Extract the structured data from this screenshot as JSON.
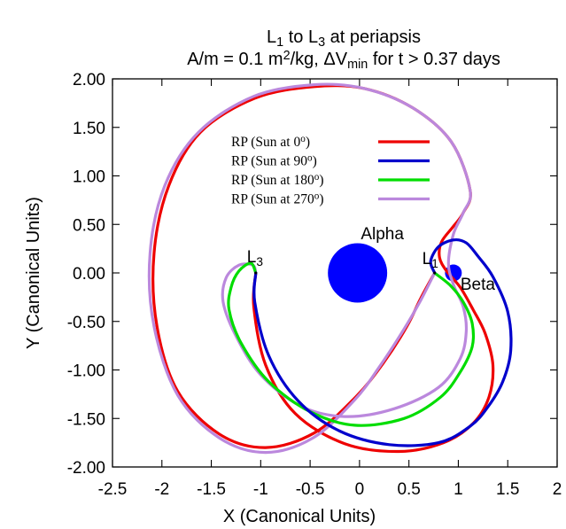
{
  "chart_data": {
    "type": "line",
    "title": {
      "line1": [
        "L",
        "1",
        " to L",
        "3",
        " at periapsis"
      ],
      "line2": [
        "A/m = 0.1 m",
        "2",
        "/kg, ΔV",
        "min",
        " for t > 0.37 days"
      ]
    },
    "xlabel": "X (Canonical Units)",
    "ylabel": "Y (Canonical Units)",
    "xlim": [
      -2.5,
      2
    ],
    "ylim": [
      -2.0,
      2.0
    ],
    "xticks": [
      "-2.5",
      "-2",
      "-1.5",
      "-1",
      "-0.5",
      "0",
      "0.5",
      "1",
      "1.5",
      "2"
    ],
    "yticks": [
      "2.00",
      "1.50",
      "1.00",
      "0.50",
      "0.00",
      "-0.50",
      "-1.00",
      "-1.50",
      "-2.00"
    ],
    "grid": false,
    "legend_position": "upper-center",
    "bodies": [
      {
        "name": "Alpha",
        "x": -0.02,
        "y": 0.0,
        "r": 0.3,
        "color": "#0000ff"
      },
      {
        "name": "Beta",
        "x": 0.95,
        "y": 0.0,
        "r": 0.085,
        "color": "#0000ff"
      }
    ],
    "points": [
      {
        "label": [
          "L",
          "1"
        ],
        "x": 0.76,
        "y": 0.0
      },
      {
        "label": [
          "L",
          "3"
        ],
        "x": -1.05,
        "y": 0.0
      }
    ],
    "series": [
      {
        "name": [
          "RP (Sun at 0",
          "o",
          ")"
        ],
        "color": "#ee0000",
        "x": [
          0.76,
          0.62,
          0.48,
          0.24,
          -0.04,
          -0.46,
          -0.95,
          -1.42,
          -1.84,
          -2.05,
          -2.08,
          -1.93,
          -1.61,
          -1.06,
          -0.46,
          0.05,
          0.54,
          0.93,
          1.12,
          1.05,
          0.95,
          0.83,
          0.81,
          0.88,
          1.02,
          1.15,
          1.27,
          1.35,
          1.31,
          1.15,
          0.85,
          0.4,
          -0.15,
          -0.65,
          -0.95,
          -1.07,
          -1.05
        ],
        "y": [
          0.0,
          -0.26,
          -0.55,
          -0.93,
          -1.28,
          -1.65,
          -1.8,
          -1.66,
          -1.22,
          -0.55,
          0.2,
          0.9,
          1.45,
          1.8,
          1.92,
          1.9,
          1.7,
          1.35,
          0.85,
          0.62,
          0.48,
          0.32,
          0.16,
          0.02,
          -0.15,
          -0.38,
          -0.62,
          -0.95,
          -1.28,
          -1.55,
          -1.75,
          -1.84,
          -1.76,
          -1.45,
          -0.95,
          -0.35,
          0.0
        ]
      },
      {
        "name": [
          "RP (Sun at 90",
          "o",
          ")"
        ],
        "color": "#0000cc",
        "x": [
          0.76,
          0.72,
          0.8,
          0.95,
          1.08,
          1.2,
          1.35,
          1.5,
          1.53,
          1.45,
          1.3,
          1.12,
          0.8,
          0.3,
          -0.2,
          -0.62,
          -0.92,
          -1.06,
          -1.05
        ],
        "y": [
          0.0,
          0.12,
          0.27,
          0.34,
          0.31,
          0.17,
          -0.04,
          -0.4,
          -0.8,
          -1.12,
          -1.38,
          -1.58,
          -1.75,
          -1.77,
          -1.63,
          -1.32,
          -0.85,
          -0.3,
          0.0
        ]
      },
      {
        "name": [
          "RP (Sun at 180",
          "o",
          ")"
        ],
        "color": "#00dd00",
        "x": [
          0.76,
          0.92,
          1.05,
          1.14,
          1.14,
          1.02,
          0.82,
          0.45,
          -0.05,
          -0.5,
          -0.92,
          -1.2,
          -1.32,
          -1.3,
          -1.22,
          -1.1,
          -1.05
        ],
        "y": [
          0.0,
          -0.13,
          -0.3,
          -0.52,
          -0.76,
          -1.02,
          -1.28,
          -1.5,
          -1.57,
          -1.43,
          -1.12,
          -0.72,
          -0.38,
          -0.15,
          0.02,
          0.1,
          0.0
        ]
      },
      {
        "name": [
          "RP (Sun at 270",
          "o",
          ")"
        ],
        "color": "#bb88dd",
        "x": [
          0.76,
          0.62,
          0.45,
          0.2,
          -0.05,
          -0.47,
          -0.95,
          -1.42,
          -1.84,
          -2.08,
          -2.12,
          -1.97,
          -1.63,
          -1.07,
          -0.46,
          0.05,
          0.54,
          0.93,
          1.12,
          1.05,
          0.95,
          0.9,
          0.95,
          1.05,
          1.08,
          1.02,
          0.8,
          0.35,
          -0.15,
          -0.6,
          -1.0,
          -1.25,
          -1.38,
          -1.35,
          -1.22,
          -1.08,
          -1.05
        ],
        "y": [
          0.0,
          -0.28,
          -0.58,
          -0.97,
          -1.31,
          -1.7,
          -1.85,
          -1.7,
          -1.26,
          -0.55,
          0.2,
          0.9,
          1.45,
          1.82,
          1.94,
          1.9,
          1.7,
          1.35,
          0.85,
          0.62,
          0.4,
          0.1,
          -0.12,
          -0.35,
          -0.6,
          -0.88,
          -1.18,
          -1.4,
          -1.48,
          -1.37,
          -1.05,
          -0.65,
          -0.3,
          -0.05,
          0.08,
          0.08,
          0.0
        ]
      }
    ]
  }
}
